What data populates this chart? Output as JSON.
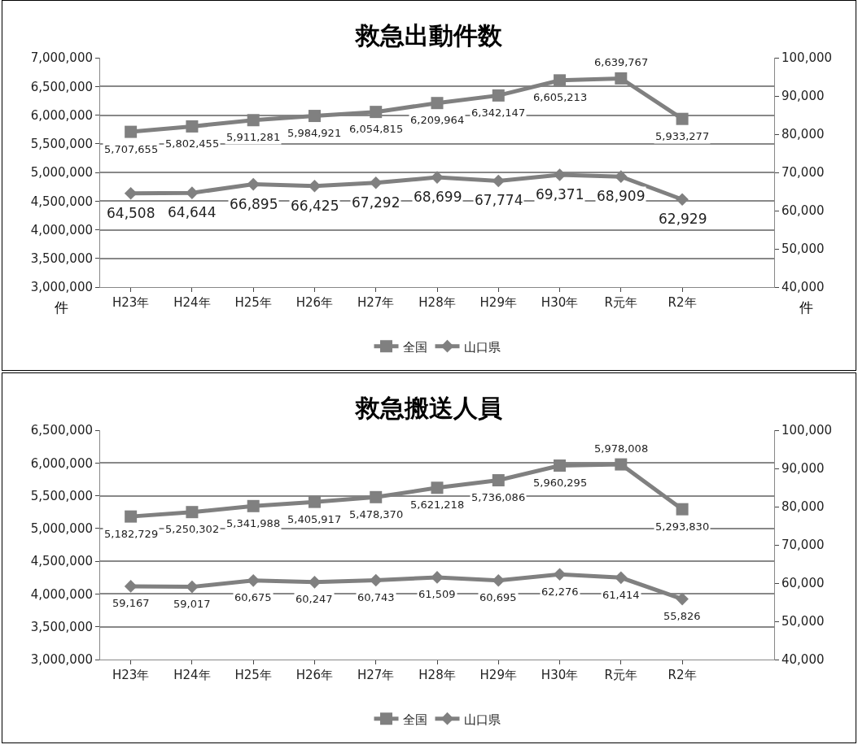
{
  "chart_data": [
    {
      "type": "line",
      "title": "救急出動件数",
      "ylabel": "件",
      "y2label": "件",
      "categories": [
        "H23年",
        "H24年",
        "H25年",
        "H26年",
        "H27年",
        "H28年",
        "H29年",
        "H30年",
        "R元年",
        "R2年",
        null
      ],
      "series": [
        {
          "name": "全国",
          "color": "#808080",
          "marker": "square",
          "values": [
            5707655,
            5802455,
            5911281,
            5984921,
            6054815,
            6209964,
            6342147,
            6605213,
            6639767,
            5933277,
            null
          ],
          "value_labels": [
            "5,707,655",
            "5,802,455",
            "5,911,281",
            "5,984,921",
            "6,054,815",
            "6,209,964",
            "6,342,147",
            "6,605,213",
            "6,639,767",
            "5,933,277",
            null
          ]
        },
        {
          "name": "山口県",
          "color": "#808080",
          "marker": "diamond",
          "axis": "y2",
          "values": [
            64508,
            64644,
            66895,
            66425,
            67292,
            68699,
            67774,
            69371,
            68909,
            62929,
            null
          ],
          "value_labels": [
            "64,508",
            "64,644",
            "66,895",
            "66,425",
            "67,292",
            "68,699",
            "67,774",
            "69,371",
            "68,909",
            "62,929",
            null
          ]
        }
      ],
      "ylim": [
        3000000,
        7000000
      ],
      "yticks": [
        {
          "value": 3000000,
          "label": "3,000,000"
        },
        {
          "value": 3500000,
          "label": "3,500,000"
        },
        {
          "value": 4000000,
          "label": "4,000,000"
        },
        {
          "value": 4500000,
          "label": "4,500,000"
        },
        {
          "value": 5000000,
          "label": "5,000,000"
        },
        {
          "value": 5500000,
          "label": "5,500,000"
        },
        {
          "value": 6000000,
          "label": "6,000,000"
        },
        {
          "value": 6500000,
          "label": "6,500,000"
        },
        {
          "value": 7000000,
          "label": "7,000,000"
        }
      ],
      "y2lim": [
        40000,
        100000
      ],
      "y2ticks": [
        {
          "value": 40000,
          "label": "40,000"
        },
        {
          "value": 50000,
          "label": "50,000"
        },
        {
          "value": 60000,
          "label": "60,000"
        },
        {
          "value": 70000,
          "label": "70,000"
        },
        {
          "value": 80000,
          "label": "80,000"
        },
        {
          "value": 90000,
          "label": "90,000"
        },
        {
          "value": 100000,
          "label": "100,000"
        }
      ],
      "grid": "y",
      "legend": "bottom",
      "line_style": "solid"
    },
    {
      "type": "line",
      "title": "救急搬送人員",
      "categories": [
        "H23年",
        "H24年",
        "H25年",
        "H26年",
        "H27年",
        "H28年",
        "H29年",
        "H30年",
        "R元年",
        "R2年",
        null
      ],
      "series": [
        {
          "name": "全国",
          "color": "#808080",
          "marker": "square",
          "values": [
            5182729,
            5250302,
            5341988,
            5405917,
            5478370,
            5621218,
            5736086,
            5960295,
            5978008,
            5293830,
            null
          ],
          "value_labels": [
            "5,182,729",
            "5,250,302",
            "5,341,988",
            "5,405,917",
            "5,478,370",
            "5,621,218",
            "5,736,086",
            "5,960,295",
            "5,978,008",
            "5,293,830",
            null
          ]
        },
        {
          "name": "山口県",
          "color": "#808080",
          "marker": "diamond",
          "axis": "y2",
          "values": [
            59167,
            59017,
            60675,
            60247,
            60743,
            61509,
            60695,
            62276,
            61414,
            55826,
            null
          ],
          "value_labels": [
            "59,167",
            "59,017",
            "60,675",
            "60,247",
            "60,743",
            "61,509",
            "60,695",
            "62,276",
            "61,414",
            "55,826",
            null
          ]
        }
      ],
      "ylim": [
        3000000,
        6500000
      ],
      "yticks": [
        {
          "value": 3000000,
          "label": "3,000,000"
        },
        {
          "value": 3500000,
          "label": "3,500,000"
        },
        {
          "value": 4000000,
          "label": "4,000,000"
        },
        {
          "value": 4500000,
          "label": "4,500,000"
        },
        {
          "value": 5000000,
          "label": "5,000,000"
        },
        {
          "value": 5500000,
          "label": "5,500,000"
        },
        {
          "value": 6000000,
          "label": "6,000,000"
        },
        {
          "value": 6500000,
          "label": "6,500,000"
        }
      ],
      "y2lim": [
        40000,
        100000
      ],
      "y2ticks": [
        {
          "value": 40000,
          "label": "40,000"
        },
        {
          "value": 50000,
          "label": "50,000"
        },
        {
          "value": 60000,
          "label": "60,000"
        },
        {
          "value": 70000,
          "label": "70,000"
        },
        {
          "value": 80000,
          "label": "80,000"
        },
        {
          "value": 90000,
          "label": "90,000"
        },
        {
          "value": 100000,
          "label": "100,000"
        }
      ],
      "grid": "y",
      "legend": "bottom",
      "line_style": "solid"
    }
  ]
}
